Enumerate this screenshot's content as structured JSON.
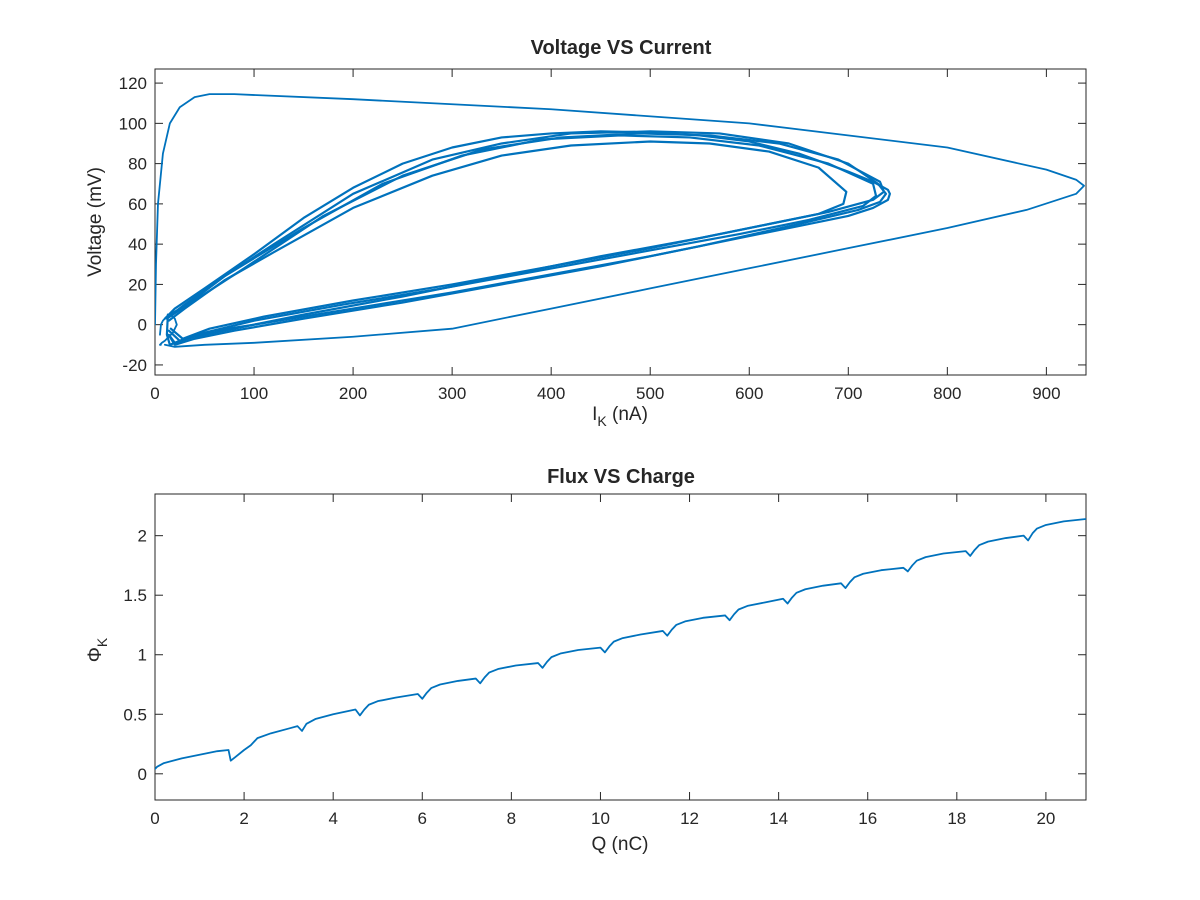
{
  "chart_data": [
    {
      "type": "line",
      "title": "Voltage VS Current",
      "xlabel": "I",
      "xlabel_sub": "K",
      "xlabel_unit": " (nA)",
      "ylabel": "Voltage (mV)",
      "xlim": [
        0,
        940
      ],
      "ylim": [
        -25,
        127
      ],
      "xticks": [
        0,
        100,
        200,
        300,
        400,
        500,
        600,
        700,
        800,
        900
      ],
      "yticks": [
        -20,
        0,
        20,
        40,
        60,
        80,
        100,
        120
      ],
      "grid": false,
      "color": "#0072bd",
      "series": [
        {
          "x": [
            0,
            1,
            3,
            8,
            15,
            25,
            40,
            55,
            80,
            200,
            400,
            600,
            800,
            900,
            930,
            938,
            930,
            880,
            800,
            700,
            600,
            500,
            400,
            300,
            200,
            100,
            50,
            20,
            10
          ],
          "y": [
            0,
            30,
            60,
            85,
            100,
            108,
            113,
            114.5,
            114.5,
            112,
            107,
            100,
            88,
            77,
            72,
            69,
            65,
            57,
            48,
            38,
            28,
            18,
            8,
            -2,
            -6,
            -9,
            -10,
            -11,
            -10
          ]
        },
        {
          "x": [
            10,
            20,
            50,
            100,
            150,
            200,
            250,
            300,
            350,
            400,
            450,
            500,
            550,
            600,
            650,
            700,
            725,
            740,
            742,
            740,
            725,
            700,
            650,
            600,
            500,
            400,
            300,
            200,
            100,
            60,
            30,
            15,
            12,
            13
          ],
          "y": [
            3,
            8,
            18,
            35,
            53,
            68,
            80,
            88,
            93,
            95,
            96,
            95.5,
            94,
            91,
            85,
            76,
            71,
            67,
            65,
            62,
            58,
            54,
            49,
            44,
            34,
            25,
            16,
            8,
            0,
            -3,
            -7,
            -10,
            -5,
            5
          ]
        },
        {
          "x": [
            14,
            30,
            70,
            120,
            200,
            280,
            350,
            420,
            500,
            570,
            640,
            700,
            730,
            738,
            732,
            710,
            650,
            550,
            450,
            350,
            250,
            150,
            80,
            40,
            20,
            15
          ],
          "y": [
            4,
            10,
            24,
            40,
            65,
            82,
            90,
            95,
            96,
            95,
            90,
            80,
            70,
            65,
            61,
            57,
            50,
            39,
            29,
            20,
            11,
            3,
            -3,
            -7,
            -10,
            -6
          ]
        },
        {
          "x": [
            14,
            30,
            70,
            120,
            200,
            280,
            350,
            420,
            500,
            560,
            620,
            670,
            698,
            695,
            670,
            620,
            550,
            450,
            350,
            250,
            150,
            80,
            40,
            20,
            14
          ],
          "y": [
            2,
            8,
            22,
            36,
            58,
            74,
            84,
            89,
            91,
            90,
            86,
            78,
            66,
            60,
            55,
            50,
            43,
            34,
            24,
            14,
            5,
            -2,
            -6,
            -9,
            -5
          ]
        },
        {
          "x": [
            12,
            30,
            70,
            150,
            230,
            310,
            390,
            470,
            540,
            610,
            680,
            725,
            728,
            715,
            660,
            590,
            490,
            390,
            290,
            190,
            100,
            50,
            25,
            14
          ],
          "y": [
            3,
            9,
            24,
            48,
            70,
            84,
            92,
            94,
            93,
            89,
            80,
            70,
            64,
            59,
            52,
            45,
            36,
            27,
            18,
            10,
            2,
            -4,
            -8,
            -3
          ]
        },
        {
          "x": [
            15,
            40,
            90,
            170,
            250,
            330,
            410,
            490,
            560,
            630,
            690,
            732,
            736,
            725,
            680,
            600,
            500,
            400,
            300,
            200,
            110,
            55,
            28,
            16
          ],
          "y": [
            5,
            12,
            28,
            54,
            74,
            87,
            93,
            95,
            94,
            90,
            82,
            71,
            66,
            62,
            56,
            48,
            38,
            29,
            20,
            12,
            4,
            -2,
            -7,
            -2
          ]
        },
        {
          "x": [
            5,
            6,
            8,
            10,
            12,
            15,
            18,
            20,
            22,
            18,
            14,
            10,
            7,
            5,
            6
          ],
          "y": [
            -5,
            0,
            2,
            3,
            4,
            5,
            4,
            3,
            0,
            -4,
            -6,
            -8,
            -9,
            -10,
            -10
          ]
        }
      ]
    },
    {
      "type": "line",
      "title": "Flux VS Charge",
      "xlabel": "Q (nC)",
      "ylabel": "Φ",
      "ylabel_sub": "K",
      "xlim": [
        0,
        20.9
      ],
      "ylim": [
        -0.22,
        2.35
      ],
      "xticks": [
        0,
        2,
        4,
        6,
        8,
        10,
        12,
        14,
        16,
        18,
        20
      ],
      "yticks": [
        0,
        0.5,
        1,
        1.5,
        2
      ],
      "grid": false,
      "color": "#0072bd",
      "series": [
        {
          "x": [
            0,
            0.05,
            0.2,
            0.6,
            1.0,
            1.4,
            1.65,
            1.7,
            1.8,
            2.0,
            2.15,
            2.3,
            2.6,
            3.0,
            3.2,
            3.3,
            3.4,
            3.6,
            4.0,
            4.5,
            4.6,
            4.7,
            4.8,
            5.0,
            5.4,
            5.9,
            6.0,
            6.1,
            6.2,
            6.4,
            6.8,
            7.2,
            7.3,
            7.4,
            7.5,
            7.7,
            8.1,
            8.6,
            8.7,
            8.8,
            8.9,
            9.1,
            9.5,
            10.0,
            10.1,
            10.2,
            10.3,
            10.5,
            10.9,
            11.4,
            11.5,
            11.6,
            11.7,
            11.9,
            12.3,
            12.8,
            12.9,
            13.0,
            13.1,
            13.3,
            13.7,
            14.1,
            14.2,
            14.3,
            14.4,
            14.6,
            15.0,
            15.4,
            15.5,
            15.6,
            15.7,
            15.9,
            16.3,
            16.8,
            16.9,
            17.0,
            17.1,
            17.3,
            17.7,
            18.2,
            18.3,
            18.4,
            18.5,
            18.7,
            19.1,
            19.5,
            19.6,
            19.7,
            19.8,
            20.0,
            20.4,
            20.9
          ],
          "y": [
            0.04,
            0.06,
            0.09,
            0.13,
            0.16,
            0.19,
            0.2,
            0.11,
            0.14,
            0.2,
            0.24,
            0.3,
            0.34,
            0.38,
            0.4,
            0.36,
            0.42,
            0.46,
            0.5,
            0.54,
            0.49,
            0.54,
            0.58,
            0.61,
            0.64,
            0.67,
            0.63,
            0.68,
            0.72,
            0.75,
            0.78,
            0.8,
            0.76,
            0.81,
            0.85,
            0.88,
            0.91,
            0.93,
            0.89,
            0.94,
            0.98,
            1.01,
            1.04,
            1.06,
            1.02,
            1.07,
            1.11,
            1.14,
            1.17,
            1.2,
            1.16,
            1.21,
            1.25,
            1.28,
            1.31,
            1.33,
            1.29,
            1.34,
            1.38,
            1.41,
            1.44,
            1.47,
            1.43,
            1.48,
            1.52,
            1.55,
            1.58,
            1.6,
            1.56,
            1.61,
            1.65,
            1.68,
            1.71,
            1.73,
            1.7,
            1.75,
            1.79,
            1.82,
            1.85,
            1.87,
            1.83,
            1.88,
            1.92,
            1.95,
            1.98,
            2.0,
            1.96,
            2.02,
            2.06,
            2.09,
            2.12,
            2.14
          ]
        }
      ]
    }
  ]
}
